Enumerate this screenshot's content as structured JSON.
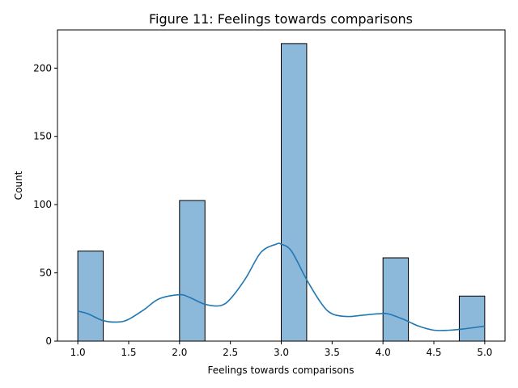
{
  "chart_data": {
    "type": "bar",
    "title": "Figure 11: Feelings towards comparisons",
    "xlabel": "Feelings towards comparisons",
    "ylabel": "Count",
    "xlim": [
      0.8,
      5.2
    ],
    "ylim": [
      0,
      228
    ],
    "x_ticks": [
      "1.0",
      "1.5",
      "2.0",
      "2.5",
      "3.0",
      "3.5",
      "4.0",
      "4.5",
      "5.0"
    ],
    "y_ticks": [
      "0",
      "50",
      "100",
      "150",
      "200"
    ],
    "bin_width": 0.25,
    "bins": [
      {
        "x0": 1.0,
        "x1": 1.25,
        "count": 66
      },
      {
        "x0": 2.0,
        "x1": 2.25,
        "count": 103
      },
      {
        "x0": 3.0,
        "x1": 3.25,
        "count": 218
      },
      {
        "x0": 4.0,
        "x1": 4.25,
        "count": 61
      },
      {
        "x0": 4.75,
        "x1": 5.0,
        "count": 33
      }
    ],
    "kde": {
      "x": [
        1.0,
        1.1,
        1.25,
        1.4,
        1.5,
        1.65,
        1.8,
        2.0,
        2.1,
        2.25,
        2.4,
        2.5,
        2.65,
        2.8,
        2.95,
        3.0,
        3.1,
        3.25,
        3.4,
        3.5,
        3.65,
        3.8,
        3.95,
        4.05,
        4.2,
        4.35,
        4.5,
        4.65,
        4.8,
        5.0
      ],
      "y": [
        22,
        20,
        15,
        14,
        16,
        23,
        31,
        34,
        32,
        27,
        26,
        31,
        46,
        65,
        71,
        71,
        66,
        45,
        27,
        20,
        18,
        19,
        20,
        20,
        16,
        11,
        8,
        8,
        9,
        11
      ]
    },
    "colors": {
      "bar_fill": "#8cb8d9",
      "bar_edge": "#000000",
      "kde_line": "#1f77b4"
    },
    "grid": false,
    "legend": "none"
  }
}
